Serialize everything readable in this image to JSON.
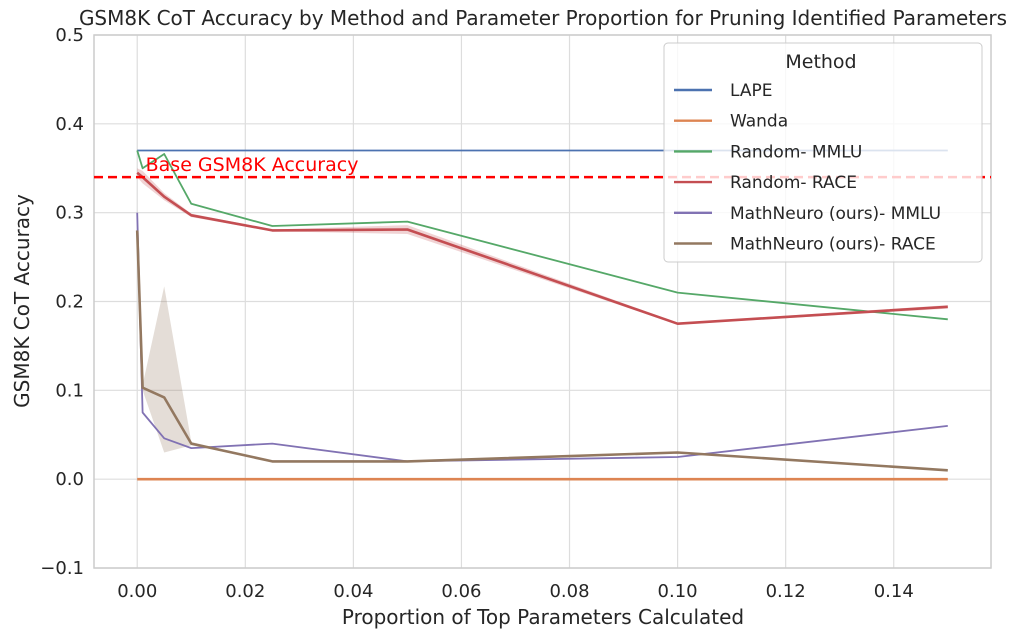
{
  "chart_data": {
    "type": "line",
    "title": "GSM8K CoT Accuracy by Method and Parameter Proportion for Pruning Identified Parameters",
    "xlabel": "Proportion of Top Parameters Calculated",
    "ylabel": "GSM8K CoT Accuracy",
    "xlim": [
      -0.008,
      0.158
    ],
    "ylim": [
      -0.1,
      0.5
    ],
    "xticks": [
      0.0,
      0.02,
      0.04,
      0.06,
      0.08,
      0.1,
      0.12,
      0.14
    ],
    "xtick_labels": [
      "0.00",
      "0.02",
      "0.04",
      "0.06",
      "0.08",
      "0.10",
      "0.12",
      "0.14"
    ],
    "yticks": [
      -0.1,
      0.0,
      0.1,
      0.2,
      0.3,
      0.4,
      0.5
    ],
    "ytick_labels": [
      "−0.1",
      "0.0",
      "0.1",
      "0.2",
      "0.3",
      "0.4",
      "0.5"
    ],
    "grid": true,
    "legend": {
      "title": "Method",
      "placement": "top-right"
    },
    "series": [
      {
        "name": "LAPE",
        "color": "#4c72b0",
        "x": [
          0.0,
          0.001,
          0.005,
          0.01,
          0.025,
          0.05,
          0.1,
          0.15
        ],
        "y": [
          0.37,
          0.37,
          0.37,
          0.37,
          0.37,
          0.37,
          0.37,
          0.37
        ]
      },
      {
        "name": "Wanda",
        "color": "#dd8452",
        "x": [
          0.0,
          0.001,
          0.005,
          0.01,
          0.025,
          0.05,
          0.1,
          0.15
        ],
        "y": [
          0.0,
          0.0,
          0.0,
          0.0,
          0.0,
          0.0,
          0.0,
          0.0
        ]
      },
      {
        "name": "Random- MMLU",
        "color": "#55a868",
        "x": [
          0.0,
          0.001,
          0.005,
          0.01,
          0.025,
          0.05,
          0.1,
          0.15
        ],
        "y": [
          0.37,
          0.35,
          0.366,
          0.31,
          0.285,
          0.29,
          0.21,
          0.18
        ]
      },
      {
        "name": "Random- RACE",
        "color": "#c44e52",
        "x": [
          0.0,
          0.001,
          0.005,
          0.01,
          0.025,
          0.05,
          0.1,
          0.15
        ],
        "y": [
          0.345,
          0.34,
          0.318,
          0.297,
          0.28,
          0.281,
          0.175,
          0.194
        ],
        "band_low": [
          0.34,
          0.333,
          0.314,
          0.295,
          0.279,
          0.276,
          0.174,
          0.192
        ],
        "band_high": [
          0.35,
          0.347,
          0.322,
          0.299,
          0.281,
          0.286,
          0.176,
          0.196
        ]
      },
      {
        "name": "MathNeuro (ours)- MMLU",
        "color": "#8172b3",
        "x": [
          0.0,
          0.001,
          0.005,
          0.01,
          0.025,
          0.05,
          0.1,
          0.15
        ],
        "y": [
          0.3,
          0.075,
          0.046,
          0.035,
          0.04,
          0.02,
          0.025,
          0.06
        ]
      },
      {
        "name": "MathNeuro (ours)- RACE",
        "color": "#937860",
        "x": [
          0.0,
          0.001,
          0.005,
          0.01,
          0.025,
          0.05,
          0.1,
          0.15
        ],
        "y": [
          0.28,
          0.103,
          0.092,
          0.04,
          0.02,
          0.02,
          0.03,
          0.01
        ],
        "band_low": [
          0.279,
          0.1,
          0.03,
          0.038,
          0.02,
          0.02,
          0.03,
          0.01
        ],
        "band_high": [
          0.281,
          0.106,
          0.217,
          0.042,
          0.02,
          0.02,
          0.03,
          0.01
        ]
      }
    ],
    "annotations": [
      {
        "text": "Base GSM8K Accuracy",
        "y": 0.34,
        "color": "#ff0000",
        "style": "dashed"
      }
    ]
  }
}
